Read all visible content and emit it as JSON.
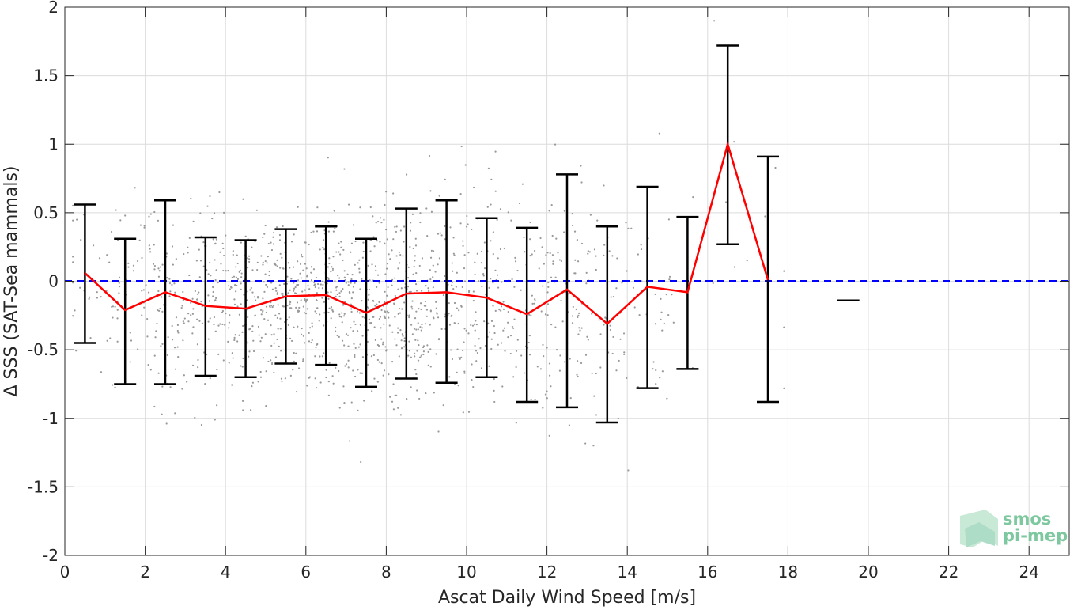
{
  "chart_data": {
    "type": "line",
    "xlabel": "Ascat Daily Wind Speed [m/s]",
    "ylabel": "Δ SSS (SAT-Sea mammals)",
    "xlim": [
      0,
      25
    ],
    "ylim": [
      -2,
      2
    ],
    "x_ticks": [
      0,
      2,
      4,
      6,
      8,
      10,
      12,
      14,
      16,
      18,
      20,
      22,
      24
    ],
    "y_ticks": [
      -2,
      -1.5,
      -1,
      -0.5,
      0,
      0.5,
      1,
      1.5,
      2
    ],
    "y_tick_labels": [
      "-2",
      "-1.5",
      "-1",
      "-0.5",
      "0",
      "0.5",
      "1",
      "1.5",
      "2"
    ],
    "grid": true,
    "series": [
      {
        "kind": "line",
        "color": "#ff0000",
        "x": [
          0.5,
          1.5,
          2.5,
          3.5,
          4.5,
          5.5,
          6.5,
          7.5,
          8.5,
          9.5,
          10.5,
          11.5,
          12.5,
          13.5,
          14.5,
          15.5,
          16.5,
          17.5
        ],
        "y": [
          0.06,
          -0.21,
          -0.08,
          -0.18,
          -0.2,
          -0.11,
          -0.1,
          -0.23,
          -0.09,
          -0.08,
          -0.12,
          -0.24,
          -0.06,
          -0.31,
          -0.04,
          -0.08,
          1.0,
          0.01
        ]
      },
      {
        "kind": "errorbar",
        "color": "#000000",
        "x": [
          0.5,
          1.5,
          2.5,
          3.5,
          4.5,
          5.5,
          6.5,
          7.5,
          8.5,
          9.5,
          10.5,
          11.5,
          12.5,
          13.5,
          14.5,
          15.5,
          16.5,
          17.5,
          19.5
        ],
        "upper": [
          0.56,
          0.31,
          0.59,
          0.32,
          0.3,
          0.38,
          0.4,
          0.31,
          0.53,
          0.59,
          0.46,
          0.39,
          0.78,
          0.4,
          0.69,
          0.47,
          1.72,
          0.91,
          -0.14
        ],
        "lower": [
          -0.45,
          -0.75,
          -0.75,
          -0.69,
          -0.7,
          -0.6,
          -0.61,
          -0.77,
          -0.71,
          -0.74,
          -0.7,
          -0.88,
          -0.92,
          -1.03,
          -0.78,
          -0.64,
          0.27,
          -0.88,
          -0.14
        ]
      },
      {
        "kind": "reference-line",
        "color": "#0000ff",
        "style": "dashed",
        "y": 0
      },
      {
        "kind": "scatter",
        "color": "#999999",
        "description_count": 1500
      }
    ]
  },
  "logo": {
    "line1": "smos",
    "line2": "pi-mep"
  }
}
